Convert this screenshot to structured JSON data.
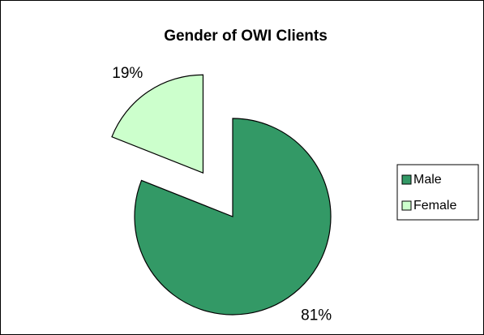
{
  "chart_data": {
    "type": "pie",
    "title": "Gender of OWI Clients",
    "categories": [
      "Male",
      "Female"
    ],
    "values": [
      81,
      19
    ],
    "value_labels": [
      "81%",
      "19%"
    ],
    "colors": [
      "#339966",
      "#ccffcc"
    ],
    "exploded": [
      false,
      true
    ],
    "legend": "right"
  }
}
